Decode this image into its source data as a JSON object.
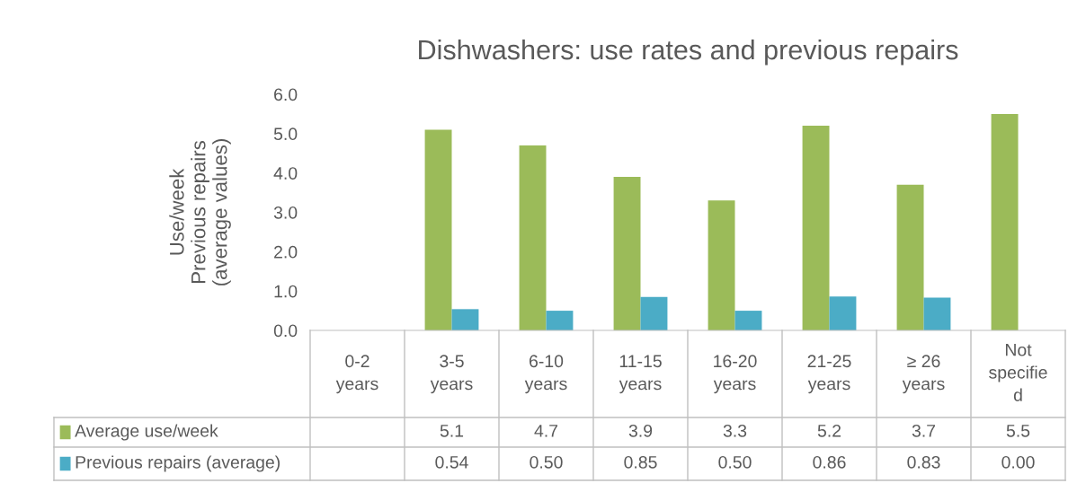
{
  "chart_data": {
    "type": "bar",
    "title": "Dishwashers: use rates and previous repairs",
    "ylabel": "Use/week\nPrevious repairs\n(average values)",
    "categories": [
      "0-2\nyears",
      "3-5\nyears",
      "6-10\nyears",
      "11-15\nyears",
      "16-20\nyears",
      "21-25\nyears",
      "≥ 26\nyears",
      "Not\nspecifie\nd"
    ],
    "series": [
      {
        "name": "Average use/week",
        "color": "#9bbb59",
        "values": [
          null,
          5.1,
          4.7,
          3.9,
          3.3,
          5.2,
          3.7,
          5.5
        ],
        "value_labels": [
          null,
          "5.1",
          "4.7",
          "3.9",
          "3.3",
          "5.2",
          "3.7",
          "5.5"
        ]
      },
      {
        "name": "Previous repairs (average)",
        "color": "#4bacc6",
        "values": [
          null,
          0.54,
          0.5,
          0.85,
          0.5,
          0.86,
          0.83,
          0.0
        ],
        "value_labels": [
          null,
          "0.54",
          "0.50",
          "0.85",
          "0.50",
          "0.86",
          "0.83",
          "0.00"
        ]
      }
    ],
    "ylim": [
      0,
      6
    ],
    "yticks": [
      {
        "value": 0,
        "label": "0.0"
      },
      {
        "value": 1,
        "label": "1.0"
      },
      {
        "value": 2,
        "label": "2.0"
      },
      {
        "value": 3,
        "label": "3.0"
      },
      {
        "value": 4,
        "label": "4.0"
      },
      {
        "value": 5,
        "label": "5.0"
      },
      {
        "value": 6,
        "label": "6.0"
      }
    ],
    "grid": false,
    "legend": "bottom left"
  }
}
